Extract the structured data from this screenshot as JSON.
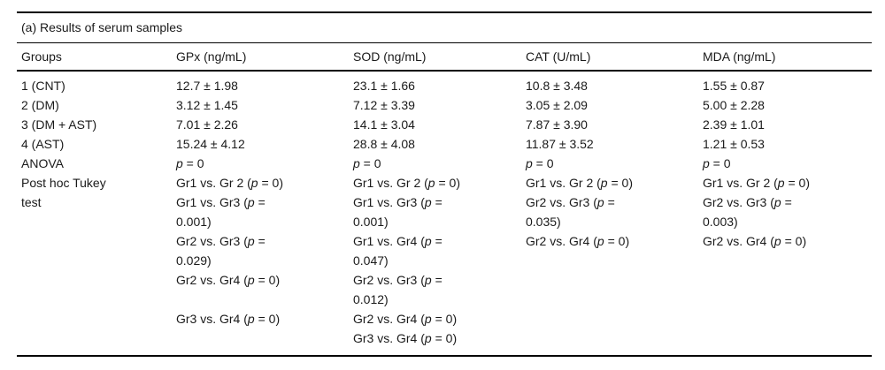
{
  "table": {
    "caption": "(a) Results of serum samples",
    "columns": [
      "Groups",
      "GPx (ng/mL)",
      "SOD (ng/mL)",
      "CAT (U/mL)",
      "MDA (ng/mL)"
    ],
    "rows": [
      {
        "label": "1 (CNT)",
        "values": [
          "12.7 ± 1.98",
          "23.1 ± 1.66",
          "10.8 ± 3.48",
          "1.55 ± 0.87"
        ]
      },
      {
        "label": "2 (DM)",
        "values": [
          "3.12 ± 1.45",
          "7.12 ± 3.39",
          "3.05 ± 2.09",
          "5.00 ± 2.28"
        ]
      },
      {
        "label": "3 (DM + AST)",
        "values": [
          "7.01 ± 2.26",
          "14.1 ± 3.04",
          "7.87 ± 3.90",
          "2.39 ± 1.01"
        ]
      },
      {
        "label": "4 (AST)",
        "values": [
          "15.24 ± 4.12",
          "28.8 ± 4.08",
          "11.87 ± 3.52",
          "1.21 ± 0.53"
        ]
      },
      {
        "label": "ANOVA",
        "values": [
          "p = 0",
          "p = 0",
          "p = 0",
          "p = 0"
        ]
      }
    ],
    "posthoc": {
      "label": [
        "Post hoc Tukey",
        "test"
      ],
      "rows": [
        [
          "Gr1 vs. Gr 2 (p = 0)",
          "Gr1 vs. Gr 2 (p = 0)",
          "Gr1 vs. Gr 2 (p = 0)",
          "Gr1 vs. Gr 2 (p = 0)"
        ],
        [
          [
            "Gr1 vs. Gr3 (p =",
            "0.001)"
          ],
          [
            "Gr1 vs. Gr3 (p =",
            "0.001)"
          ],
          [
            "Gr2 vs. Gr3 (p =",
            "0.035)"
          ],
          [
            "Gr2 vs. Gr3 (p =",
            "0.003)"
          ]
        ],
        [
          [
            "Gr2 vs. Gr3 (p =",
            "0.029)"
          ],
          [
            "Gr1 vs. Gr4 (p =",
            "0.047)"
          ],
          "Gr2 vs. Gr4 (p = 0)",
          "Gr2 vs. Gr4 (p = 0)"
        ],
        [
          "Gr2 vs. Gr4 (p = 0)",
          [
            "Gr2 vs. Gr3 (p =",
            "0.012)"
          ],
          "",
          ""
        ],
        [
          "Gr3 vs. Gr4 (p = 0)",
          "Gr2 vs. Gr4 (p = 0)",
          "",
          ""
        ],
        [
          "",
          "Gr3 vs. Gr4 (p = 0)",
          "",
          ""
        ]
      ]
    }
  }
}
